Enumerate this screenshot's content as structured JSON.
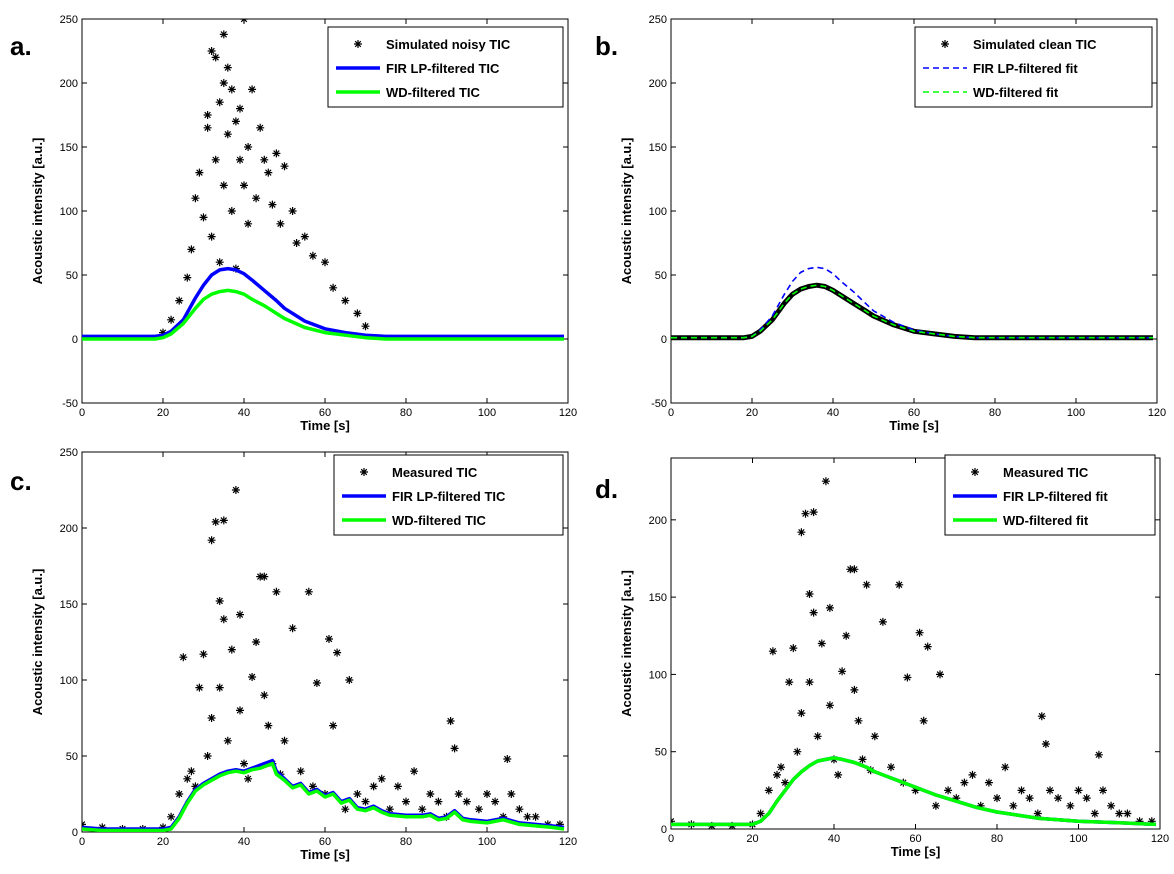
{
  "colors": {
    "markers": "#000000",
    "fir": "#0000ff",
    "wd": "#00ff00"
  },
  "chart_data": [
    {
      "panel": "a.",
      "type": "scatter",
      "xlabel": "Time [s]",
      "ylabel": "Acoustic intensity [a.u.]",
      "xlim": [
        0,
        120
      ],
      "ylim": [
        -50,
        250
      ],
      "xticks": [
        0,
        20,
        40,
        60,
        80,
        100,
        120
      ],
      "yticks": [
        -50,
        0,
        50,
        100,
        150,
        200,
        250
      ],
      "legend_position": "top-right",
      "series": [
        {
          "name": "Simulated noisy TIC",
          "kind": "markers",
          "x": [
            20,
            22,
            24,
            26,
            27,
            28,
            29,
            30,
            31,
            31,
            32,
            32,
            33,
            33,
            34,
            34,
            35,
            35,
            35,
            36,
            36,
            37,
            37,
            38,
            38,
            39,
            39,
            40,
            40,
            41,
            41,
            42,
            43,
            44,
            45,
            46,
            47,
            48,
            49,
            50,
            52,
            53,
            55,
            57,
            60,
            62,
            65,
            68,
            70
          ],
          "y": [
            5,
            15,
            30,
            48,
            70,
            110,
            130,
            95,
            175,
            165,
            225,
            80,
            220,
            140,
            185,
            60,
            238,
            200,
            120,
            212,
            160,
            195,
            100,
            170,
            55,
            180,
            140,
            250,
            120,
            150,
            90,
            195,
            110,
            165,
            140,
            130,
            105,
            145,
            90,
            135,
            100,
            75,
            80,
            65,
            60,
            40,
            30,
            20,
            10
          ]
        },
        {
          "name": "FIR LP-filtered TIC",
          "kind": "line",
          "x": [
            0,
            10,
            18,
            20,
            22,
            25,
            28,
            30,
            32,
            34,
            36,
            38,
            40,
            42,
            45,
            48,
            50,
            55,
            60,
            65,
            70,
            75,
            80,
            90,
            100,
            119
          ],
          "y": [
            2,
            2,
            2,
            3,
            6,
            15,
            32,
            42,
            50,
            54,
            55,
            54,
            51,
            46,
            38,
            30,
            24,
            14,
            8,
            5,
            3,
            2,
            2,
            2,
            2,
            2
          ]
        },
        {
          "name": "WD-filtered TIC",
          "kind": "line",
          "x": [
            0,
            10,
            18,
            20,
            22,
            25,
            28,
            30,
            32,
            34,
            36,
            38,
            40,
            42,
            45,
            48,
            50,
            55,
            60,
            65,
            70,
            75,
            80,
            90,
            100,
            119
          ],
          "y": [
            0,
            0,
            0,
            1,
            4,
            12,
            24,
            31,
            35,
            37,
            38,
            37,
            35,
            31,
            26,
            20,
            16,
            9,
            5,
            3,
            1,
            0,
            0,
            0,
            0,
            0
          ]
        }
      ]
    },
    {
      "panel": "b.",
      "type": "line",
      "xlabel": "Time [s]",
      "ylabel": "Acoustic intensity [a.u.]",
      "xlim": [
        0,
        120
      ],
      "ylim": [
        -50,
        250
      ],
      "xticks": [
        0,
        20,
        40,
        60,
        80,
        100,
        120
      ],
      "yticks": [
        -50,
        0,
        50,
        100,
        150,
        200,
        250
      ],
      "legend_position": "top-right",
      "series": [
        {
          "name": "Simulated clean TIC",
          "kind": "thick",
          "x": [
            0,
            10,
            18,
            20,
            22,
            25,
            28,
            30,
            32,
            34,
            36,
            38,
            40,
            42,
            45,
            48,
            50,
            55,
            60,
            65,
            70,
            75,
            80,
            90,
            100,
            119
          ],
          "y": [
            1,
            1,
            1,
            2,
            6,
            15,
            28,
            35,
            39,
            41,
            42,
            41,
            38,
            34,
            28,
            22,
            18,
            11,
            6,
            4,
            2,
            1,
            1,
            1,
            1,
            1
          ]
        },
        {
          "name": "FIR LP-filtered fit",
          "kind": "dashed",
          "x": [
            0,
            10,
            18,
            20,
            22,
            25,
            28,
            30,
            32,
            34,
            36,
            38,
            40,
            42,
            45,
            48,
            50,
            55,
            60,
            65,
            70,
            75,
            80,
            90,
            100,
            119
          ],
          "y": [
            1,
            1,
            1,
            2,
            7,
            18,
            35,
            45,
            52,
            55,
            56,
            55,
            51,
            45,
            37,
            28,
            22,
            13,
            7,
            4,
            2,
            1,
            1,
            1,
            1,
            1
          ]
        },
        {
          "name": "WD-filtered fit",
          "kind": "dashed",
          "x": [
            0,
            10,
            18,
            20,
            22,
            25,
            28,
            30,
            32,
            34,
            36,
            38,
            40,
            42,
            45,
            48,
            50,
            55,
            60,
            65,
            70,
            75,
            80,
            90,
            100,
            119
          ],
          "y": [
            1,
            1,
            1,
            2,
            6,
            15,
            28,
            35,
            39,
            41,
            42,
            41,
            38,
            34,
            28,
            22,
            18,
            11,
            6,
            4,
            2,
            1,
            1,
            1,
            1,
            1
          ]
        }
      ]
    },
    {
      "panel": "c.",
      "type": "scatter",
      "xlabel": "Time [s]",
      "ylabel": "Acoustic intensity [a.u.]",
      "xlim": [
        0,
        120
      ],
      "ylim": [
        0,
        250
      ],
      "xticks": [
        0,
        20,
        40,
        60,
        80,
        100,
        120
      ],
      "yticks": [
        0,
        50,
        100,
        150,
        200,
        250
      ],
      "legend_position": "top-right",
      "series": [
        {
          "name": "Measured TIC",
          "kind": "markers",
          "x": [
            0,
            5,
            10,
            15,
            20,
            22,
            24,
            25,
            26,
            27,
            28,
            29,
            30,
            31,
            32,
            32,
            33,
            34,
            34,
            35,
            35,
            36,
            37,
            38,
            39,
            39,
            40,
            41,
            42,
            43,
            44,
            45,
            45,
            46,
            47,
            48,
            49,
            50,
            52,
            54,
            56,
            57,
            58,
            60,
            61,
            62,
            63,
            65,
            66,
            68,
            70,
            72,
            74,
            76,
            78,
            80,
            82,
            84,
            86,
            88,
            90,
            91,
            92,
            93,
            95,
            98,
            100,
            102,
            104,
            105,
            106,
            108,
            110,
            112,
            115,
            118
          ],
          "y": [
            5,
            3,
            2,
            2,
            3,
            10,
            25,
            115,
            35,
            40,
            30,
            95,
            117,
            50,
            75,
            192,
            204,
            152,
            95,
            140,
            205,
            60,
            120,
            225,
            80,
            143,
            45,
            35,
            102,
            125,
            168,
            90,
            168,
            70,
            45,
            158,
            38,
            60,
            134,
            40,
            158,
            30,
            98,
            25,
            127,
            70,
            118,
            15,
            100,
            25,
            20,
            30,
            35,
            15,
            30,
            20,
            40,
            15,
            25,
            20,
            10,
            73,
            55,
            25,
            20,
            15,
            25,
            20,
            10,
            48,
            25,
            15,
            10,
            10,
            5,
            5
          ]
        },
        {
          "name": "FIR LP-filtered TIC",
          "kind": "line",
          "x": [
            0,
            5,
            10,
            15,
            20,
            22,
            24,
            26,
            28,
            30,
            32,
            34,
            36,
            38,
            40,
            42,
            44,
            46,
            47,
            48,
            50,
            52,
            54,
            56,
            58,
            60,
            62,
            64,
            66,
            68,
            70,
            72,
            74,
            76,
            80,
            84,
            86,
            88,
            90,
            92,
            94,
            96,
            100,
            104,
            108,
            112,
            116,
            119
          ],
          "y": [
            3,
            2,
            2,
            2,
            2,
            3,
            10,
            20,
            28,
            32,
            35,
            38,
            40,
            41,
            40,
            42,
            44,
            46,
            47,
            40,
            35,
            30,
            32,
            26,
            28,
            24,
            26,
            20,
            22,
            16,
            15,
            17,
            14,
            12,
            11,
            11,
            12,
            9,
            10,
            14,
            9,
            8,
            7,
            9,
            6,
            5,
            4,
            3
          ]
        },
        {
          "name": "WD-filtered TIC",
          "kind": "line",
          "x": [
            0,
            5,
            10,
            15,
            20,
            22,
            24,
            26,
            28,
            30,
            32,
            34,
            36,
            38,
            40,
            42,
            44,
            46,
            47,
            48,
            50,
            52,
            54,
            56,
            58,
            60,
            62,
            64,
            66,
            68,
            70,
            72,
            74,
            76,
            80,
            84,
            86,
            88,
            90,
            92,
            94,
            96,
            100,
            104,
            108,
            112,
            116,
            119
          ],
          "y": [
            2,
            1,
            1,
            1,
            1,
            2,
            9,
            19,
            27,
            31,
            34,
            37,
            39,
            40,
            39,
            41,
            42,
            44,
            45,
            38,
            34,
            29,
            31,
            25,
            27,
            23,
            25,
            19,
            21,
            15,
            14,
            16,
            13,
            11,
            10,
            10,
            11,
            8,
            9,
            13,
            8,
            7,
            6,
            8,
            5,
            4,
            3,
            2
          ]
        }
      ]
    },
    {
      "panel": "d.",
      "type": "scatter",
      "xlabel": "Time [s]",
      "ylabel": "Acoustic intensity [a.u.]",
      "xlim": [
        0,
        120
      ],
      "ylim": [
        0,
        240
      ],
      "xticks": [
        0,
        20,
        40,
        60,
        80,
        100,
        120
      ],
      "yticks": [
        0,
        50,
        100,
        150,
        200
      ],
      "legend_position": "top-right",
      "series": [
        {
          "name": "Measured TIC",
          "kind": "markers",
          "x": [
            0,
            5,
            10,
            15,
            20,
            22,
            24,
            25,
            26,
            27,
            28,
            29,
            30,
            31,
            32,
            32,
            33,
            34,
            34,
            35,
            35,
            36,
            37,
            38,
            39,
            39,
            40,
            41,
            42,
            43,
            44,
            45,
            45,
            46,
            47,
            48,
            49,
            50,
            52,
            54,
            56,
            57,
            58,
            60,
            61,
            62,
            63,
            65,
            66,
            68,
            70,
            72,
            74,
            76,
            78,
            80,
            82,
            84,
            86,
            88,
            90,
            91,
            92,
            93,
            95,
            98,
            100,
            102,
            104,
            105,
            106,
            108,
            110,
            112,
            115,
            118
          ],
          "y": [
            5,
            3,
            2,
            2,
            3,
            10,
            25,
            115,
            35,
            40,
            30,
            95,
            117,
            50,
            75,
            192,
            204,
            152,
            95,
            140,
            205,
            60,
            120,
            225,
            80,
            143,
            45,
            35,
            102,
            125,
            168,
            90,
            168,
            70,
            45,
            158,
            38,
            60,
            134,
            40,
            158,
            30,
            98,
            25,
            127,
            70,
            118,
            15,
            100,
            25,
            20,
            30,
            35,
            15,
            30,
            20,
            40,
            15,
            25,
            20,
            10,
            73,
            55,
            25,
            20,
            15,
            25,
            20,
            10,
            48,
            25,
            15,
            10,
            10,
            5,
            5
          ]
        },
        {
          "name": "FIR LP-filtered fit",
          "kind": "line",
          "x": [
            0,
            10,
            18,
            20,
            22,
            24,
            26,
            28,
            30,
            32,
            34,
            36,
            38,
            40,
            42,
            45,
            48,
            50,
            55,
            60,
            65,
            70,
            75,
            80,
            85,
            90,
            95,
            100,
            110,
            119
          ],
          "y": [
            3,
            3,
            3,
            3,
            5,
            10,
            18,
            25,
            32,
            37,
            41,
            44,
            45,
            46,
            45,
            43,
            40,
            37,
            32,
            27,
            22,
            18,
            14,
            11,
            9,
            7,
            6,
            5,
            4,
            3
          ]
        },
        {
          "name": "WD-filtered fit",
          "kind": "line",
          "x": [
            0,
            10,
            18,
            20,
            22,
            24,
            26,
            28,
            30,
            32,
            34,
            36,
            38,
            40,
            42,
            45,
            48,
            50,
            55,
            60,
            65,
            70,
            75,
            80,
            85,
            90,
            95,
            100,
            110,
            119
          ],
          "y": [
            3,
            3,
            3,
            3,
            5,
            10,
            18,
            25,
            32,
            37,
            41,
            44,
            45,
            46,
            45,
            43,
            40,
            37,
            32,
            27,
            22,
            18,
            14,
            11,
            9,
            7,
            6,
            5,
            4,
            3
          ]
        }
      ]
    }
  ]
}
